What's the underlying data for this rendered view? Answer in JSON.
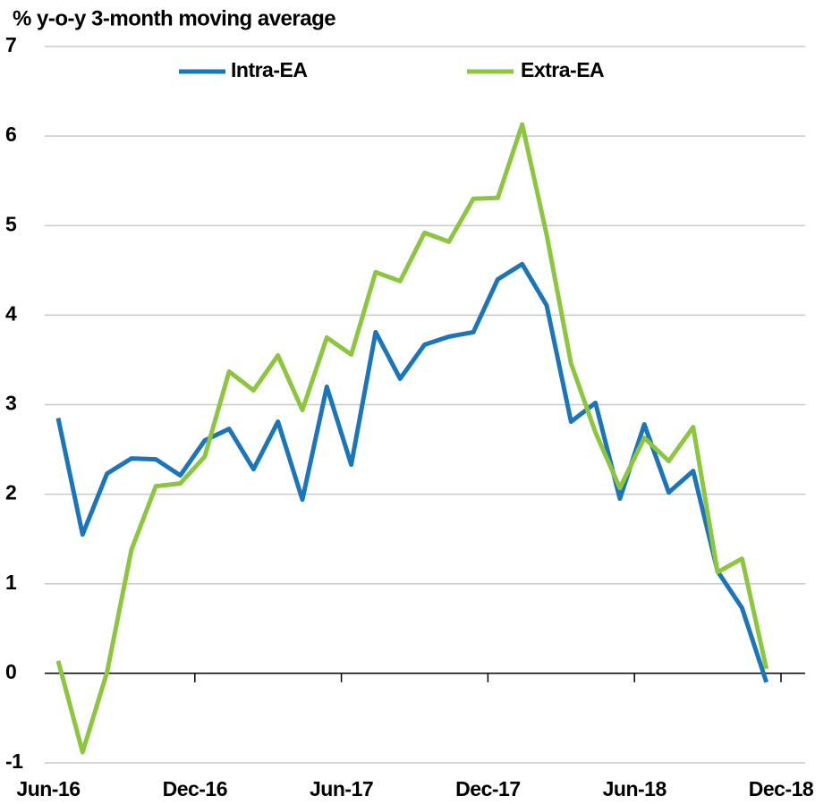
{
  "chart_data": {
    "type": "line",
    "title": "% y-o-y 3-month moving average",
    "categories": [
      "Jun-16",
      null,
      null,
      null,
      null,
      null,
      "Dec-16",
      null,
      null,
      null,
      null,
      null,
      "Jun-17",
      null,
      null,
      null,
      null,
      null,
      "Dec-17",
      null,
      null,
      null,
      null,
      null,
      "Jun-18",
      null,
      null,
      null,
      null,
      null,
      "Dec-18"
    ],
    "series": [
      {
        "name": "Intra-EA",
        "color": "#1a75bb",
        "values": [
          2.85,
          1.55,
          2.23,
          2.4,
          2.39,
          2.21,
          2.6,
          2.73,
          2.28,
          2.81,
          1.94,
          3.2,
          2.33,
          3.81,
          3.29,
          3.67,
          3.76,
          3.81,
          4.4,
          4.57,
          4.11,
          2.81,
          3.02,
          1.95,
          2.78,
          2.02,
          2.26,
          1.14,
          0.73,
          -0.1,
          null
        ]
      },
      {
        "name": "Extra-EA",
        "color": "#8cc63f",
        "values": [
          0.14,
          -0.88,
          0.01,
          1.38,
          2.09,
          2.12,
          2.42,
          3.37,
          3.16,
          3.55,
          2.94,
          3.75,
          3.56,
          4.48,
          4.38,
          4.92,
          4.82,
          5.3,
          5.31,
          6.13,
          4.9,
          3.46,
          2.69,
          2.07,
          2.63,
          2.37,
          2.75,
          1.13,
          1.28,
          0.05,
          null
        ]
      }
    ],
    "ylim": [
      -1,
      7
    ],
    "yticks": [
      -1,
      0,
      1,
      2,
      3,
      4,
      5,
      6,
      7
    ],
    "grid": true
  }
}
